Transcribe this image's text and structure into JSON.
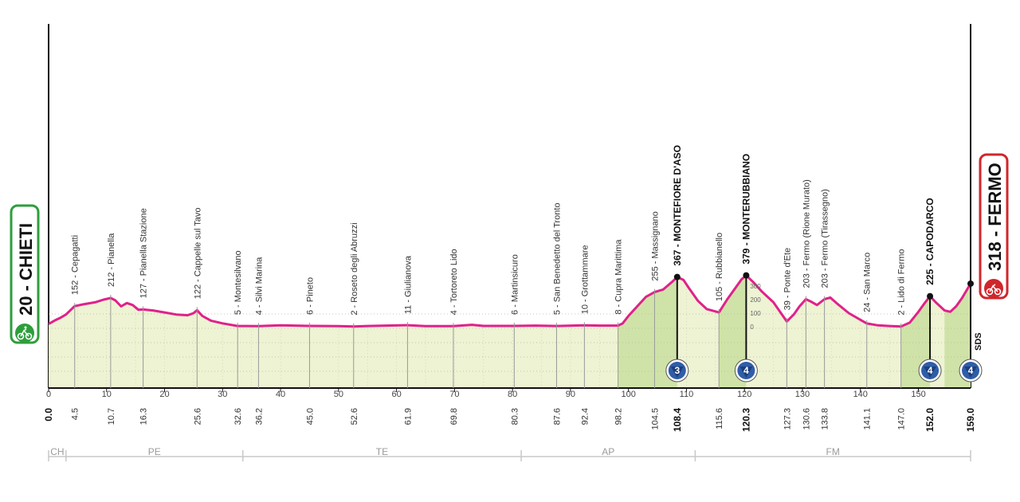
{
  "stage": {
    "start": {
      "altitude": "20",
      "name": "CHIETI",
      "badge_color": "#2e9e3c",
      "icon": "cyclist-icon"
    },
    "finish": {
      "altitude": "318",
      "name": "FERMO",
      "badge_color": "#d0262b",
      "icon": "finish-flag-icon"
    },
    "sds_label": "SDS"
  },
  "colors": {
    "profile_line": "#e0218a",
    "profile_fill": "#eef3d3",
    "climb_fill": "#cfe3a8",
    "gpm_badge": "#2f5da8"
  },
  "chart_data": {
    "type": "area",
    "xlabel": "",
    "ylabel": "",
    "xlim": [
      0,
      159
    ],
    "ylim": [
      0,
      600
    ],
    "grid": true,
    "profile": [
      [
        0,
        20
      ],
      [
        1,
        45
      ],
      [
        2,
        65
      ],
      [
        3,
        90
      ],
      [
        4.5,
        152
      ],
      [
        6,
        165
      ],
      [
        8,
        180
      ],
      [
        9.5,
        200
      ],
      [
        10.7,
        212
      ],
      [
        11.5,
        195
      ],
      [
        12.5,
        150
      ],
      [
        13.5,
        175
      ],
      [
        14.5,
        160
      ],
      [
        15.5,
        125
      ],
      [
        16.3,
        127
      ],
      [
        18,
        120
      ],
      [
        20,
        105
      ],
      [
        22,
        90
      ],
      [
        24,
        85
      ],
      [
        25,
        100
      ],
      [
        25.6,
        122
      ],
      [
        26.5,
        80
      ],
      [
        28,
        45
      ],
      [
        30,
        25
      ],
      [
        32.6,
        5
      ],
      [
        34,
        5
      ],
      [
        36.2,
        4
      ],
      [
        40,
        10
      ],
      [
        45,
        6
      ],
      [
        50,
        4
      ],
      [
        52.6,
        2
      ],
      [
        55,
        5
      ],
      [
        61.9,
        11
      ],
      [
        65,
        4
      ],
      [
        69.8,
        4
      ],
      [
        73,
        14
      ],
      [
        75,
        6
      ],
      [
        80.3,
        6
      ],
      [
        84,
        8
      ],
      [
        87.6,
        5
      ],
      [
        92.4,
        10
      ],
      [
        95,
        8
      ],
      [
        98.2,
        8
      ],
      [
        99,
        25
      ],
      [
        100,
        80
      ],
      [
        101.5,
        150
      ],
      [
        103,
        220
      ],
      [
        104.5,
        255
      ],
      [
        106,
        275
      ],
      [
        107.5,
        330
      ],
      [
        108.4,
        367
      ],
      [
        109.5,
        345
      ],
      [
        110.5,
        280
      ],
      [
        112,
        190
      ],
      [
        113.5,
        130
      ],
      [
        115.6,
        105
      ],
      [
        117,
        200
      ],
      [
        118.5,
        290
      ],
      [
        119.5,
        350
      ],
      [
        120.3,
        379
      ],
      [
        121.5,
        330
      ],
      [
        123,
        260
      ],
      [
        125,
        180
      ],
      [
        127.3,
        39
      ],
      [
        128.5,
        90
      ],
      [
        129.5,
        150
      ],
      [
        130.6,
        203
      ],
      [
        131.5,
        185
      ],
      [
        132.5,
        160
      ],
      [
        133.8,
        203
      ],
      [
        134.8,
        215
      ],
      [
        136,
        170
      ],
      [
        138,
        100
      ],
      [
        141.1,
        24
      ],
      [
        143,
        10
      ],
      [
        145,
        5
      ],
      [
        147,
        2
      ],
      [
        148.5,
        30
      ],
      [
        150,
        110
      ],
      [
        151,
        170
      ],
      [
        152,
        225
      ],
      [
        153,
        180
      ],
      [
        154.5,
        120
      ],
      [
        155.5,
        110
      ],
      [
        156.5,
        150
      ],
      [
        157.5,
        210
      ],
      [
        159,
        318
      ]
    ],
    "x_ticks": [
      0,
      10,
      20,
      30,
      40,
      50,
      60,
      70,
      80,
      90,
      100,
      110,
      120,
      130,
      140,
      150
    ],
    "altitude_scale": [
      {
        "label": "300",
        "y": 300
      },
      {
        "label": "200",
        "y": 200
      },
      {
        "label": "100",
        "y": 100
      },
      {
        "label": "0",
        "y": 0
      }
    ],
    "waypoints": [
      {
        "km": "0.0",
        "x": 0,
        "label": "",
        "kind": "start"
      },
      {
        "km": "4.5",
        "x": 4.5,
        "label": "152 - Cepagatti"
      },
      {
        "km": "10.7",
        "x": 10.7,
        "label": "212 - Pianella"
      },
      {
        "km": "16.3",
        "x": 16.3,
        "label": "127 - Pianella Stazione"
      },
      {
        "km": "25.6",
        "x": 25.6,
        "label": "122 - Cappelle sul Tavo"
      },
      {
        "km": "32.6",
        "x": 32.6,
        "label": "5 - Montesilvano"
      },
      {
        "km": "36.2",
        "x": 36.2,
        "label": "4 - Silvi Marina"
      },
      {
        "km": "45.0",
        "x": 45.0,
        "label": "6 - Pineto"
      },
      {
        "km": "52.6",
        "x": 52.6,
        "label": "2 - Roseto degli Abruzzi"
      },
      {
        "km": "61.9",
        "x": 61.9,
        "label": "11 - Giulianova"
      },
      {
        "km": "69.8",
        "x": 69.8,
        "label": "4 - Tortoreto Lido"
      },
      {
        "km": "80.3",
        "x": 80.3,
        "label": "6 - Martinsicuro"
      },
      {
        "km": "87.6",
        "x": 87.6,
        "label": "5 - San Benedetto del Tronto"
      },
      {
        "km": "92.4",
        "x": 92.4,
        "label": "10 - Grottammare"
      },
      {
        "km": "98.2",
        "x": 98.2,
        "label": "8 - Cupra Marittima"
      },
      {
        "km": "104.5",
        "x": 104.5,
        "label": "255 - Massignano"
      },
      {
        "km": "108.4",
        "x": 108.4,
        "label": "367 - MONTEFIORE D'ASO",
        "kind": "gpm",
        "category": "3"
      },
      {
        "km": "115.6",
        "x": 115.6,
        "label": "105 - Rubbianello"
      },
      {
        "km": "120.3",
        "x": 120.3,
        "label": "379 - MONTERUBBIANO",
        "kind": "gpm",
        "category": "4"
      },
      {
        "km": "127.3",
        "x": 127.3,
        "label": "39 - Ponte d'Ete"
      },
      {
        "km": "130.6",
        "x": 130.6,
        "label": "203 - Fermo (Rione Murato)"
      },
      {
        "km": "133.8",
        "x": 133.8,
        "label": "203 - Fermo (Tirassegno)"
      },
      {
        "km": "141.1",
        "x": 141.1,
        "label": "24 - San Marco"
      },
      {
        "km": "147.0",
        "x": 147.0,
        "label": "2 - Lido di Fermo"
      },
      {
        "km": "152.0",
        "x": 152.0,
        "label": "225 - CAPODARCO",
        "kind": "gpm",
        "category": "4"
      },
      {
        "km": "159.0",
        "x": 159.0,
        "label": "",
        "kind": "finish",
        "category": "4"
      }
    ],
    "provinces": [
      {
        "label": "CH",
        "from": 0,
        "to": 3
      },
      {
        "label": "PE",
        "from": 3,
        "to": 33.5
      },
      {
        "label": "TE",
        "from": 33.5,
        "to": 81.5
      },
      {
        "label": "AP",
        "from": 81.5,
        "to": 111.5
      },
      {
        "label": "FM",
        "from": 111.5,
        "to": 159
      }
    ]
  }
}
